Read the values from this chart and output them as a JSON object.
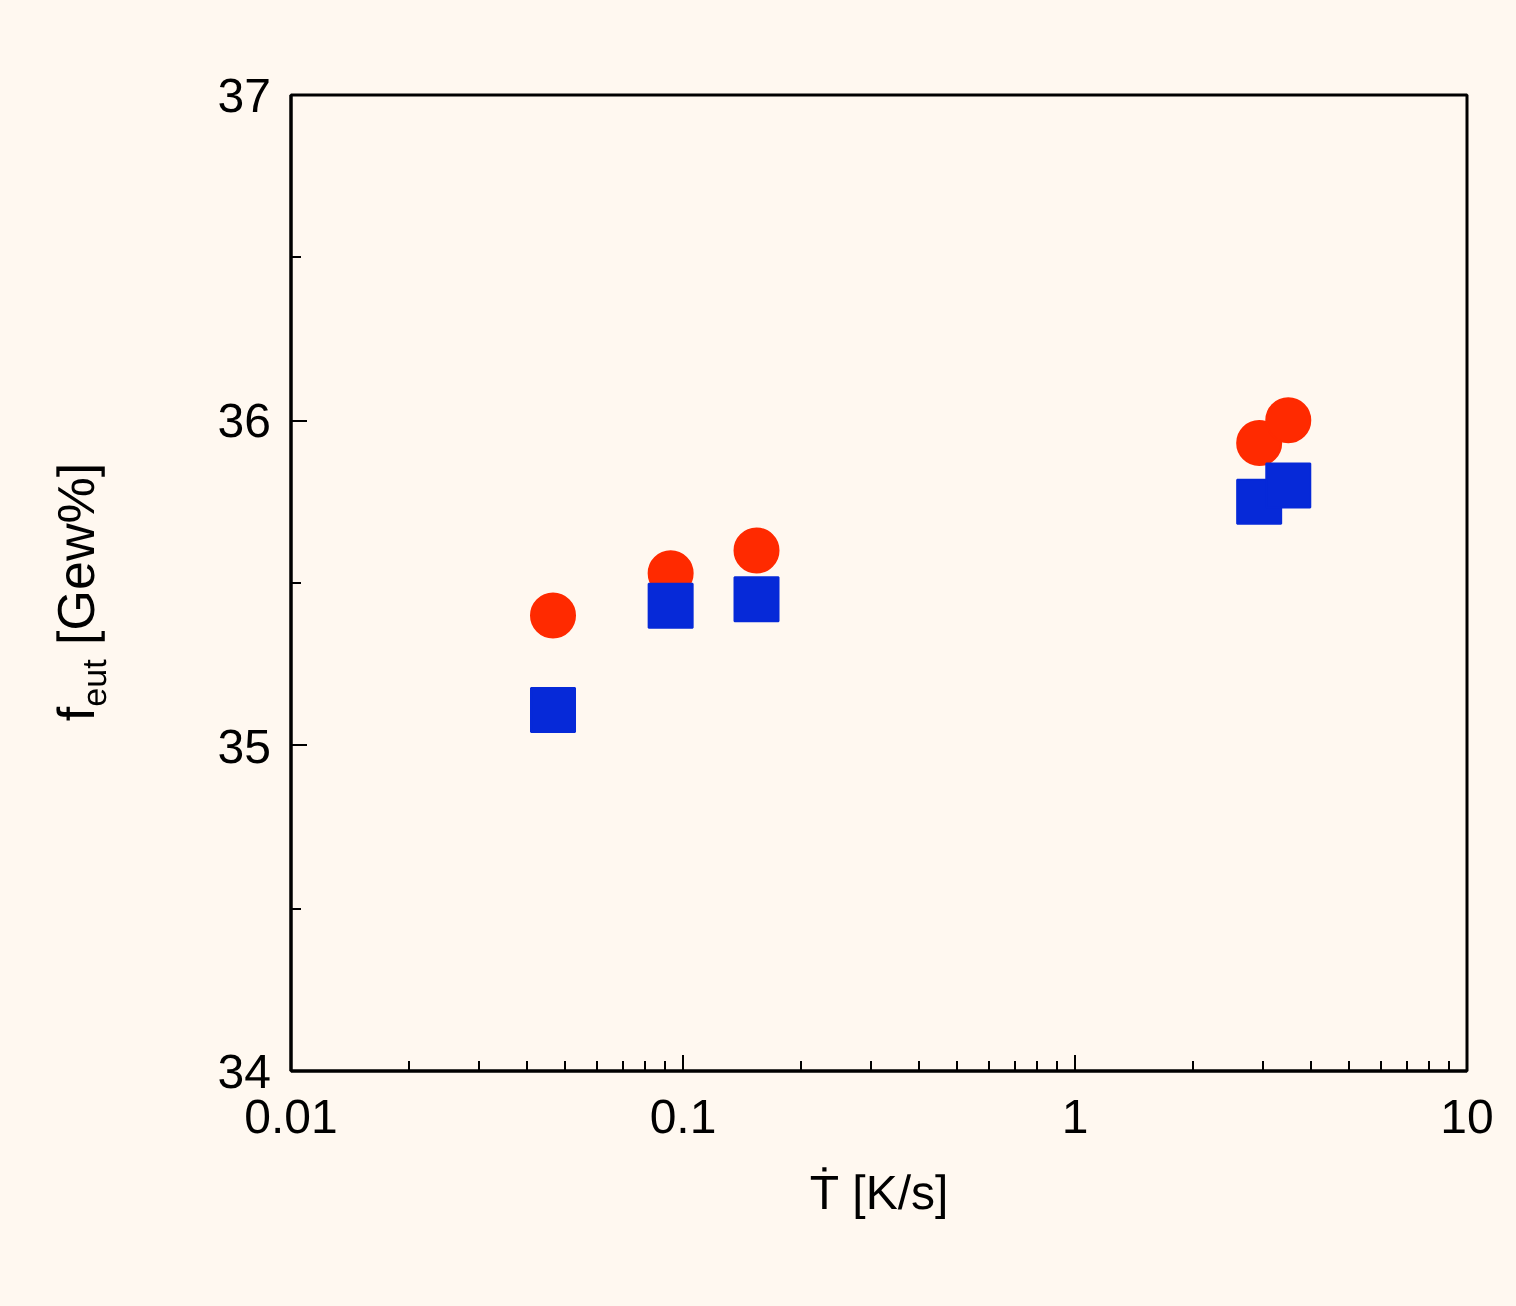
{
  "chart_data": {
    "type": "scatter",
    "xlabel": "Ṫ [K/s]",
    "ylabel": "f$_{eut}$ [Gew%]",
    "log": "x",
    "xlim": [
      0.01,
      10
    ],
    "xticks": [
      0.01,
      0.1,
      1,
      10
    ],
    "ylim": [
      34,
      37
    ],
    "yticks": [
      34,
      35,
      36,
      37
    ],
    "series": [
      {
        "color": "#ff2a00",
        "marker": "circle",
        "x": [
          0.0466,
          0.093,
          0.154,
          2.95,
          3.5
        ],
        "values": [
          35.4,
          35.53,
          35.6,
          35.93,
          36.0
        ]
      },
      {
        "color": "#0629d8",
        "marker": "square",
        "x": [
          0.0466,
          0.093,
          0.154,
          2.95,
          3.5
        ],
        "values": [
          35.11,
          35.43,
          35.45,
          35.75,
          35.8
        ]
      }
    ]
  }
}
